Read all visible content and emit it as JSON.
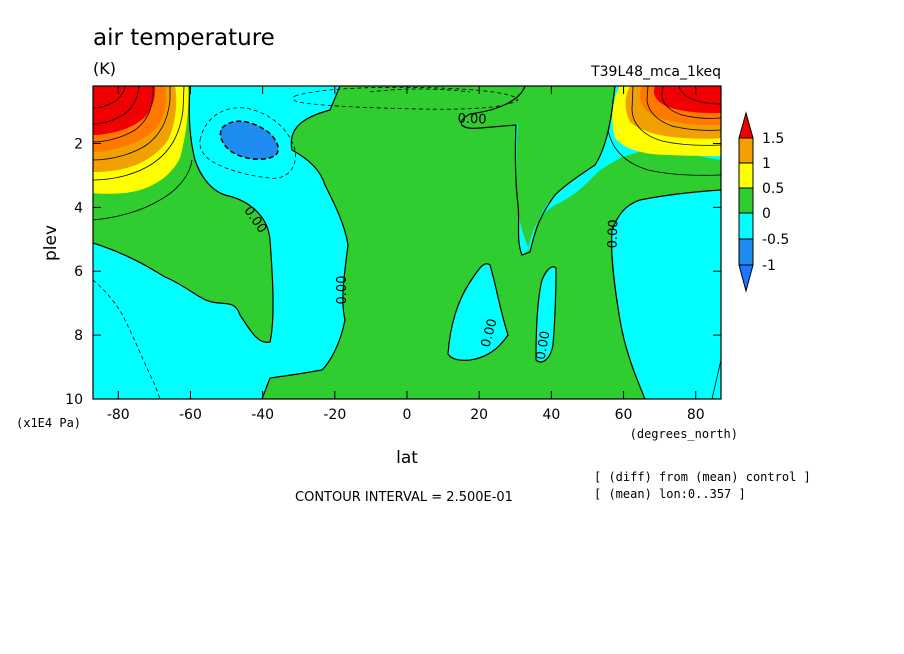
{
  "header": {
    "title": "air temperature",
    "units": "(K)",
    "run_name": "T39L48_mca_1keq"
  },
  "footer": {
    "contour_interval": "CONTOUR INTERVAL = 2.500E-01",
    "note_diff": "[ (diff) from (mean) control ]",
    "note_mean": "[ (mean) lon:0..357 ]"
  },
  "colors": {
    "le_-1": "#1e78ff",
    "-1_-0.5": "#1e8cf0",
    "-0.5_0": "#00ffff",
    "0_0.5": "#2fcd2f",
    "0.5_1": "#ffff00",
    "1_1.5": "#f0a000",
    "1.5_2": "#ff7800",
    "ge_2": "#f00000"
  },
  "chart_data": {
    "type": "contour",
    "title": "air temperature",
    "units": "(K)",
    "xlabel": "lat",
    "ylabel": "plev",
    "x_units": "(degrees_north)",
    "y_units": "(x1E4 Pa)",
    "xlim": [
      -87,
      87
    ],
    "ylim": [
      10,
      0.2
    ],
    "xticks": [
      "-80",
      "-60",
      "-40",
      "-20",
      "0",
      "20",
      "40",
      "60",
      "80"
    ],
    "xtick_values": [
      -80,
      -60,
      -40,
      -20,
      0,
      20,
      40,
      60,
      80
    ],
    "yticks": [
      "2",
      "4",
      "6",
      "8",
      "10"
    ],
    "ytick_values": [
      2,
      4,
      6,
      8,
      10
    ],
    "colorbar": {
      "labels": [
        "1.5",
        "1",
        "0.5",
        "0",
        "-0.5",
        "-1"
      ],
      "levels": [
        1.5,
        1,
        0.5,
        0,
        -0.5,
        -1
      ]
    },
    "contour_interval": 0.25,
    "contour_labels": [
      "0.00",
      "0.00",
      "0.00",
      "0.00",
      "0.00",
      "0.00"
    ],
    "regions": [
      {
        "range": "0 to 0.5",
        "description": "broad positive anomaly, central band from -35 to 30 and near 55-87 at depth"
      },
      {
        "range": "-0.5 to 0",
        "description": "negative anomaly south of -40 below 4e4 Pa and near 60-85 from 4 to 10e4 Pa"
      },
      {
        "range": "-1 to -0.5",
        "description": "minimum near lat -47, plev 1.7e4 Pa"
      },
      {
        "range": ">= 2",
        "description": "upper-level maxima near lat -80 and lat 78, plev 0.5e4 Pa"
      }
    ]
  }
}
